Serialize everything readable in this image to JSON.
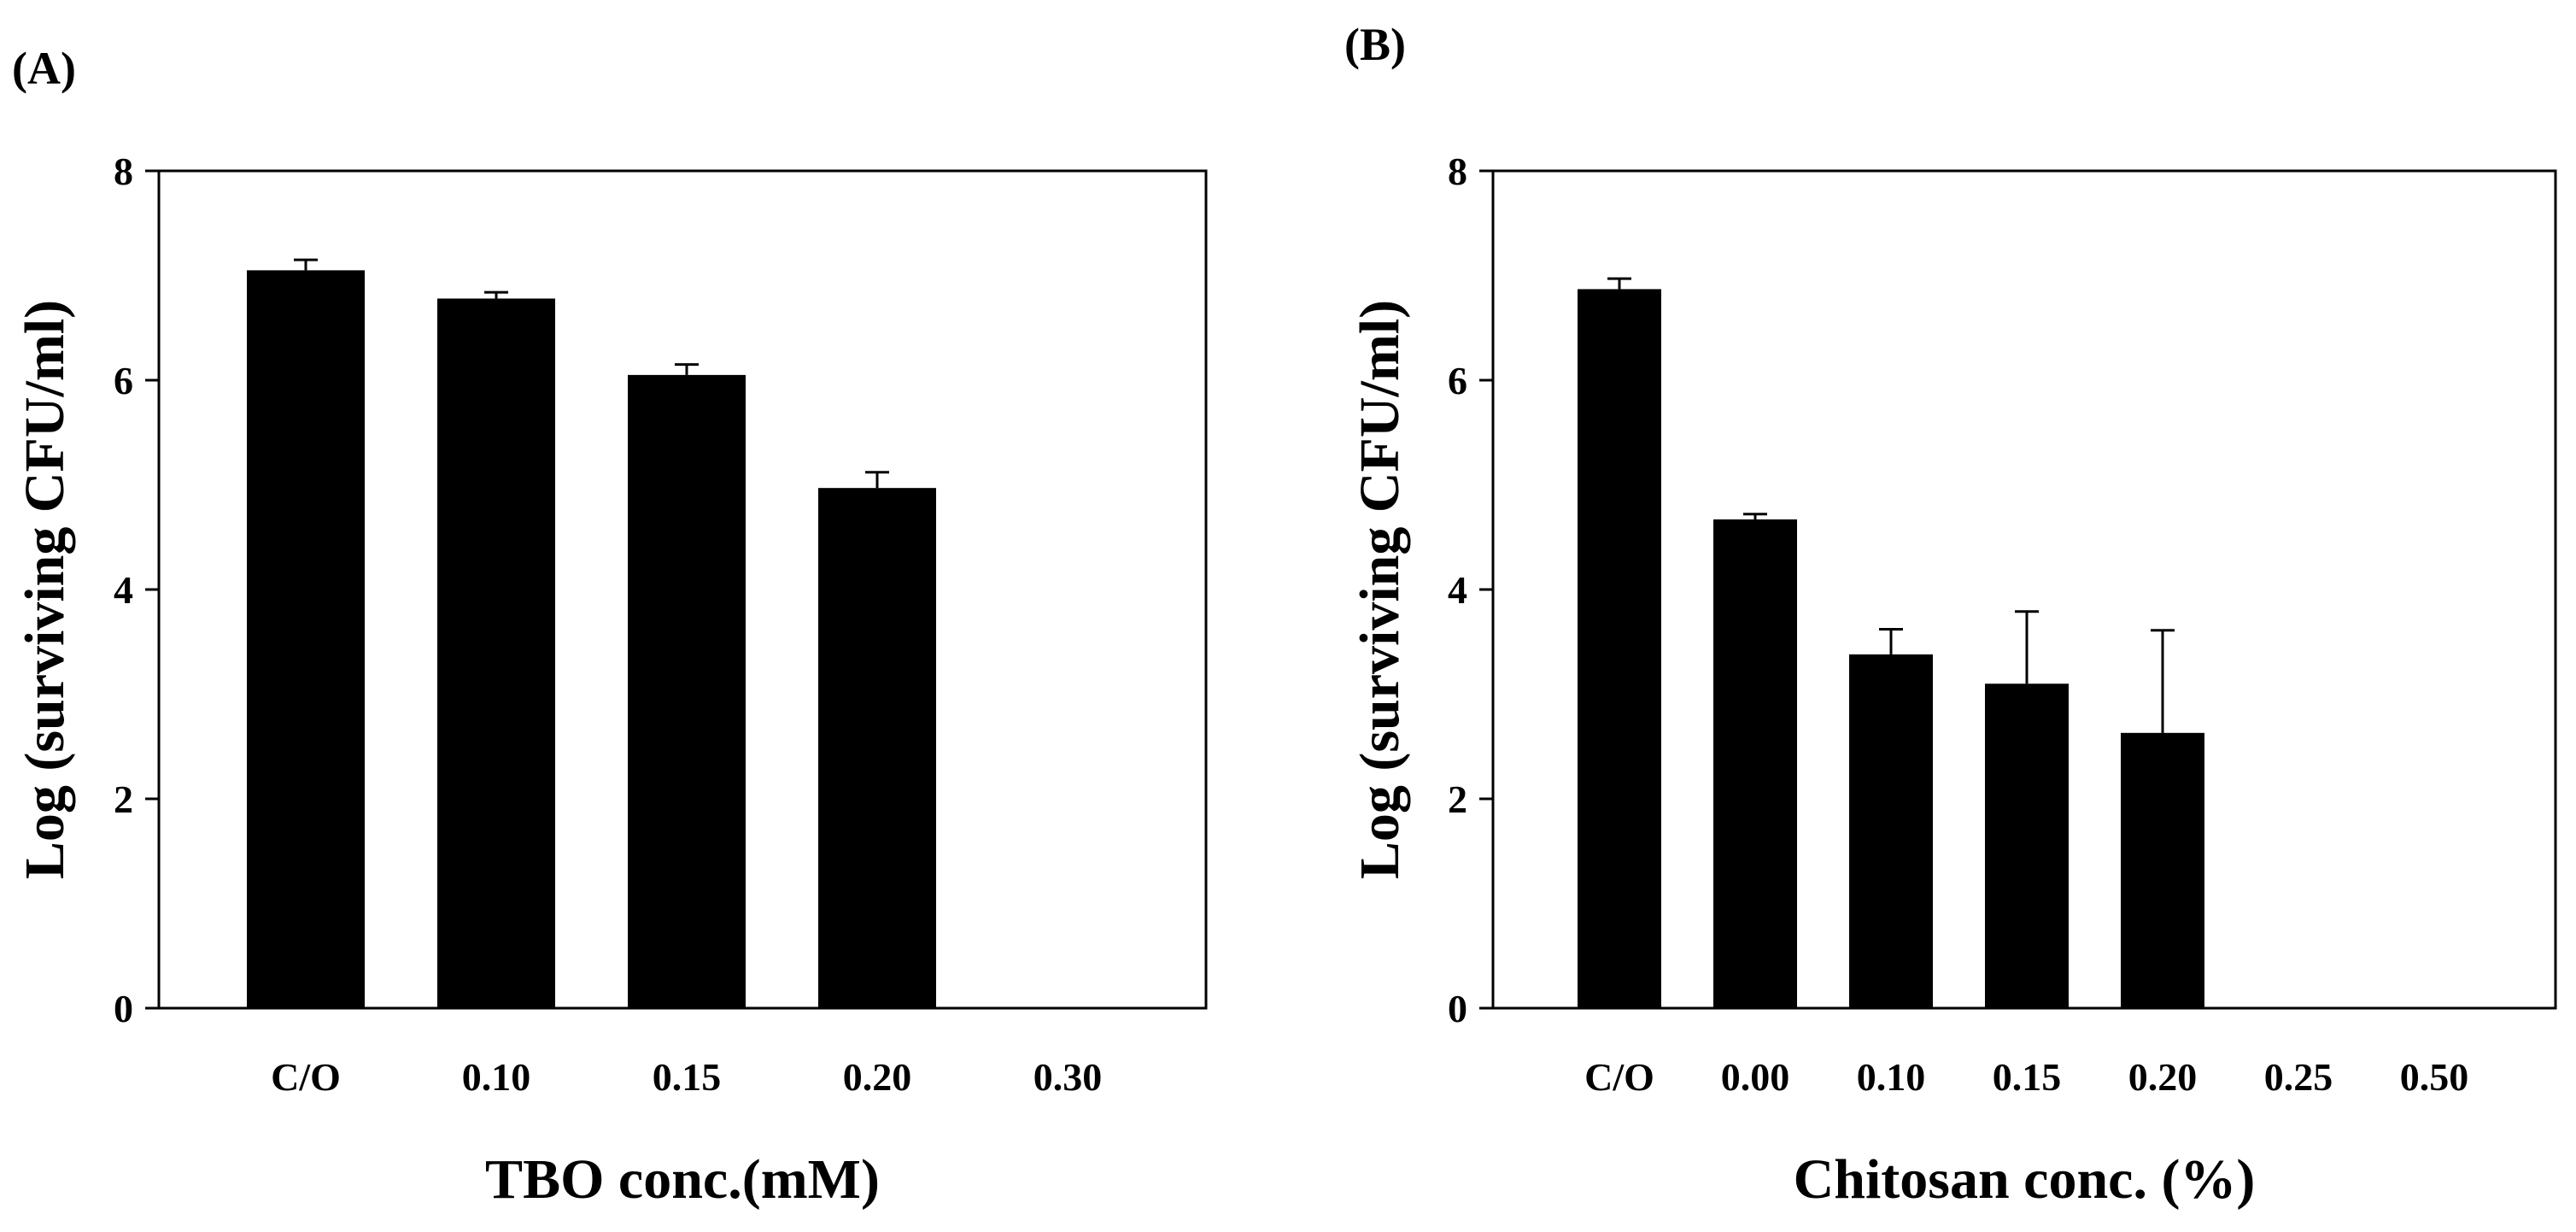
{
  "chart_data": [
    {
      "panel_label": "(A)",
      "type": "bar",
      "categories": [
        "C/O",
        "0.10",
        "0.15",
        "0.20",
        "0.30"
      ],
      "values": [
        7.05,
        6.78,
        6.05,
        4.97,
        0
      ],
      "errors": [
        0.1,
        0.06,
        0.1,
        0.15,
        0
      ],
      "xlabel": "TBO conc.(mM)",
      "ylabel": "Log (surviving CFU/ml)",
      "ylim": [
        0,
        8
      ],
      "yticks": [
        "0",
        "2",
        "4",
        "6",
        "8"
      ],
      "color": "#000000"
    },
    {
      "panel_label": "(B)",
      "type": "bar",
      "categories": [
        "C/O",
        "0.00",
        "0.10",
        "0.15",
        "0.20",
        "0.25",
        "0.50"
      ],
      "values": [
        6.87,
        4.67,
        3.38,
        3.1,
        2.63,
        0,
        0
      ],
      "errors": [
        0.1,
        0.05,
        0.24,
        0.69,
        0.98,
        0,
        0
      ],
      "xlabel": "Chitosan conc. (%)",
      "ylabel": "Log (surviving CFU/ml)",
      "ylim": [
        0,
        8
      ],
      "yticks": [
        "0",
        "2",
        "4",
        "6",
        "8"
      ],
      "color": "#000000"
    }
  ]
}
